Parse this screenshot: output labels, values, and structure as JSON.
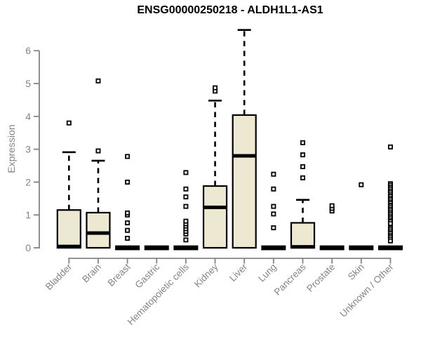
{
  "title": "ENSG00000250218 - ALDH1L1-AS1",
  "y_axis": {
    "label": "Expression",
    "ticks": [
      0,
      1,
      2,
      3,
      4,
      5,
      6
    ]
  },
  "colors": {
    "background": "#FFFFFF",
    "box_fill": "#EDE8D1",
    "box_stroke": "#000000",
    "median": "#000000",
    "whisker": "#000000",
    "outlier_fill": "#FFFFFF",
    "outlier_stroke": "#000000",
    "axis": "#848484",
    "tick_text": "#848484",
    "title_text": "#000000"
  },
  "chart_data": {
    "type": "boxplot",
    "title": "ENSG00000250218 - ALDH1L1-AS1",
    "xlabel": "",
    "ylabel": "Expression",
    "ylim": [
      0,
      6.7
    ],
    "y_ticks": [
      0,
      1,
      2,
      3,
      4,
      5,
      6
    ],
    "grid": false,
    "legend": "none",
    "categories": [
      "Bladder",
      "Brain",
      "Breast",
      "Gastric",
      "Hematopoietic cells",
      "Kidney",
      "Liver",
      "Lung",
      "Pancreas",
      "Prostate",
      "Skin",
      "Unknown / Other"
    ],
    "boxes": [
      {
        "category": "Bladder",
        "q1": 0,
        "median": 0.04,
        "q3": 1.15,
        "whisker_low": 0,
        "whisker_high": 2.91,
        "outliers": [
          3.8
        ]
      },
      {
        "category": "Brain",
        "q1": 0,
        "median": 0.45,
        "q3": 1.07,
        "whisker_low": 0,
        "whisker_high": 2.65,
        "outliers": [
          2.95,
          5.08
        ]
      },
      {
        "category": "Breast",
        "q1": 0,
        "median": 0,
        "q3": 0,
        "whisker_low": 0,
        "whisker_high": 0,
        "outliers": [
          0.29,
          0.53,
          0.76,
          1.0,
          1.06,
          2.0,
          2.78
        ]
      },
      {
        "category": "Gastric",
        "q1": 0,
        "median": 0,
        "q3": 0,
        "whisker_low": 0,
        "whisker_high": 0,
        "outliers": []
      },
      {
        "category": "Hematopoietic cells",
        "q1": 0,
        "median": 0,
        "q3": 0,
        "whisker_low": 0,
        "whisker_high": 0,
        "outliers": [
          0.24,
          0.42,
          0.5,
          0.58,
          0.66,
          0.73,
          0.81,
          1.26,
          1.55,
          1.79,
          2.29
        ]
      },
      {
        "category": "Kidney",
        "q1": 0,
        "median": 1.23,
        "q3": 1.88,
        "whisker_low": 0,
        "whisker_high": 4.48,
        "outliers": [
          4.77,
          4.87
        ]
      },
      {
        "category": "Liver",
        "q1": 0,
        "median": 2.8,
        "q3": 4.04,
        "whisker_low": 0,
        "whisker_high": 6.63,
        "outliers": []
      },
      {
        "category": "Lung",
        "q1": 0,
        "median": 0,
        "q3": 0,
        "whisker_low": 0,
        "whisker_high": 0,
        "outliers": [
          0.61,
          1.03,
          1.26,
          1.79,
          2.24
        ]
      },
      {
        "category": "Pancreas",
        "q1": 0,
        "median": 0.03,
        "q3": 0.76,
        "whisker_low": 0,
        "whisker_high": 1.46,
        "outliers": [
          2.13,
          2.47,
          2.83,
          3.2
        ]
      },
      {
        "category": "Prostate",
        "q1": 0,
        "median": 0,
        "q3": 0,
        "whisker_low": 0,
        "whisker_high": 0,
        "outliers": [
          1.12,
          1.2,
          1.28
        ]
      },
      {
        "category": "Skin",
        "q1": 0,
        "median": 0,
        "q3": 0,
        "whisker_low": 0,
        "whisker_high": 0,
        "outliers": [
          1.92
        ]
      },
      {
        "category": "Unknown / Other",
        "q1": 0,
        "median": 0,
        "q3": 0,
        "whisker_low": 0,
        "whisker_high": 0,
        "outliers": [
          3.07,
          1.95,
          1.9,
          1.84,
          1.79,
          1.73,
          1.68,
          1.62,
          1.57,
          1.51,
          1.46,
          1.4,
          1.35,
          1.29,
          1.24,
          1.18,
          1.13,
          1.07,
          1.02,
          0.96,
          0.91,
          0.85,
          0.8,
          0.74,
          0.6,
          0.55,
          0.49,
          0.44,
          0.38,
          0.33,
          0.27,
          0.21
        ]
      }
    ]
  }
}
